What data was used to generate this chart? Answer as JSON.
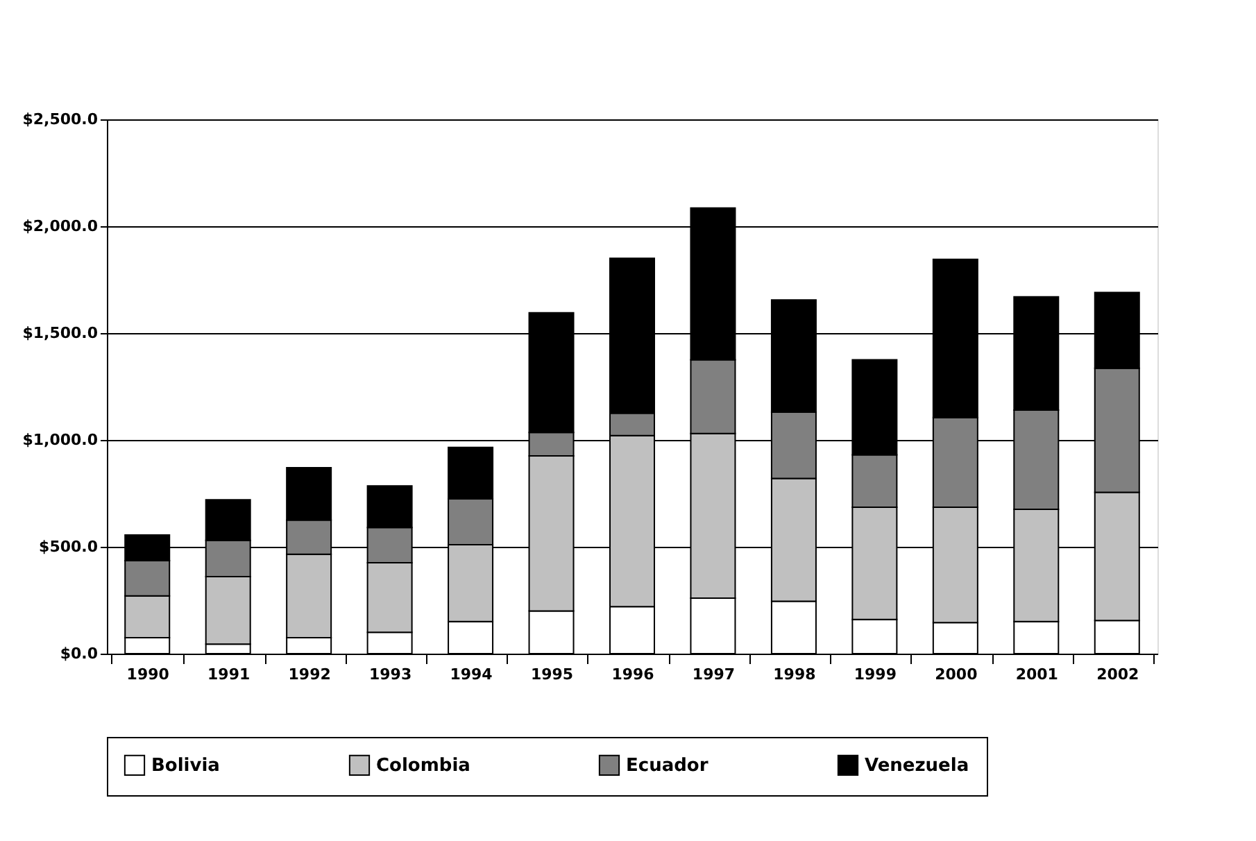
{
  "chart_data": {
    "type": "bar",
    "stacked": true,
    "categories": [
      "1990",
      "1991",
      "1992",
      "1993",
      "1994",
      "1995",
      "1996",
      "1997",
      "1998",
      "1999",
      "2000",
      "2001",
      "2002"
    ],
    "series": [
      {
        "name": "Bolivia",
        "color": "#ffffff",
        "values": [
          75,
          45,
          75,
          100,
          150,
          200,
          220,
          260,
          245,
          160,
          145,
          150,
          155
        ]
      },
      {
        "name": "Colombia",
        "color": "#c0c0c0",
        "values": [
          195,
          315,
          390,
          325,
          360,
          725,
          800,
          770,
          575,
          525,
          540,
          525,
          600
        ]
      },
      {
        "name": "Ecuador",
        "color": "#808080",
        "values": [
          165,
          170,
          160,
          165,
          215,
          110,
          105,
          345,
          310,
          245,
          420,
          465,
          580
        ]
      },
      {
        "name": "Venezuela",
        "color": "#000000",
        "values": [
          120,
          190,
          245,
          195,
          240,
          560,
          725,
          710,
          525,
          445,
          740,
          530,
          355
        ]
      }
    ],
    "ylim": [
      0,
      2500
    ],
    "yticks": [
      {
        "value": 0,
        "label": "$0.0"
      },
      {
        "value": 500,
        "label": "$500.0"
      },
      {
        "value": 1000,
        "label": "$1,000.0"
      },
      {
        "value": 1500,
        "label": "$1,500.0"
      },
      {
        "value": 2000,
        "label": "$2,000.0"
      },
      {
        "value": 2500,
        "label": "$2,500.0"
      }
    ],
    "grid": "y",
    "legend": "bottom"
  }
}
